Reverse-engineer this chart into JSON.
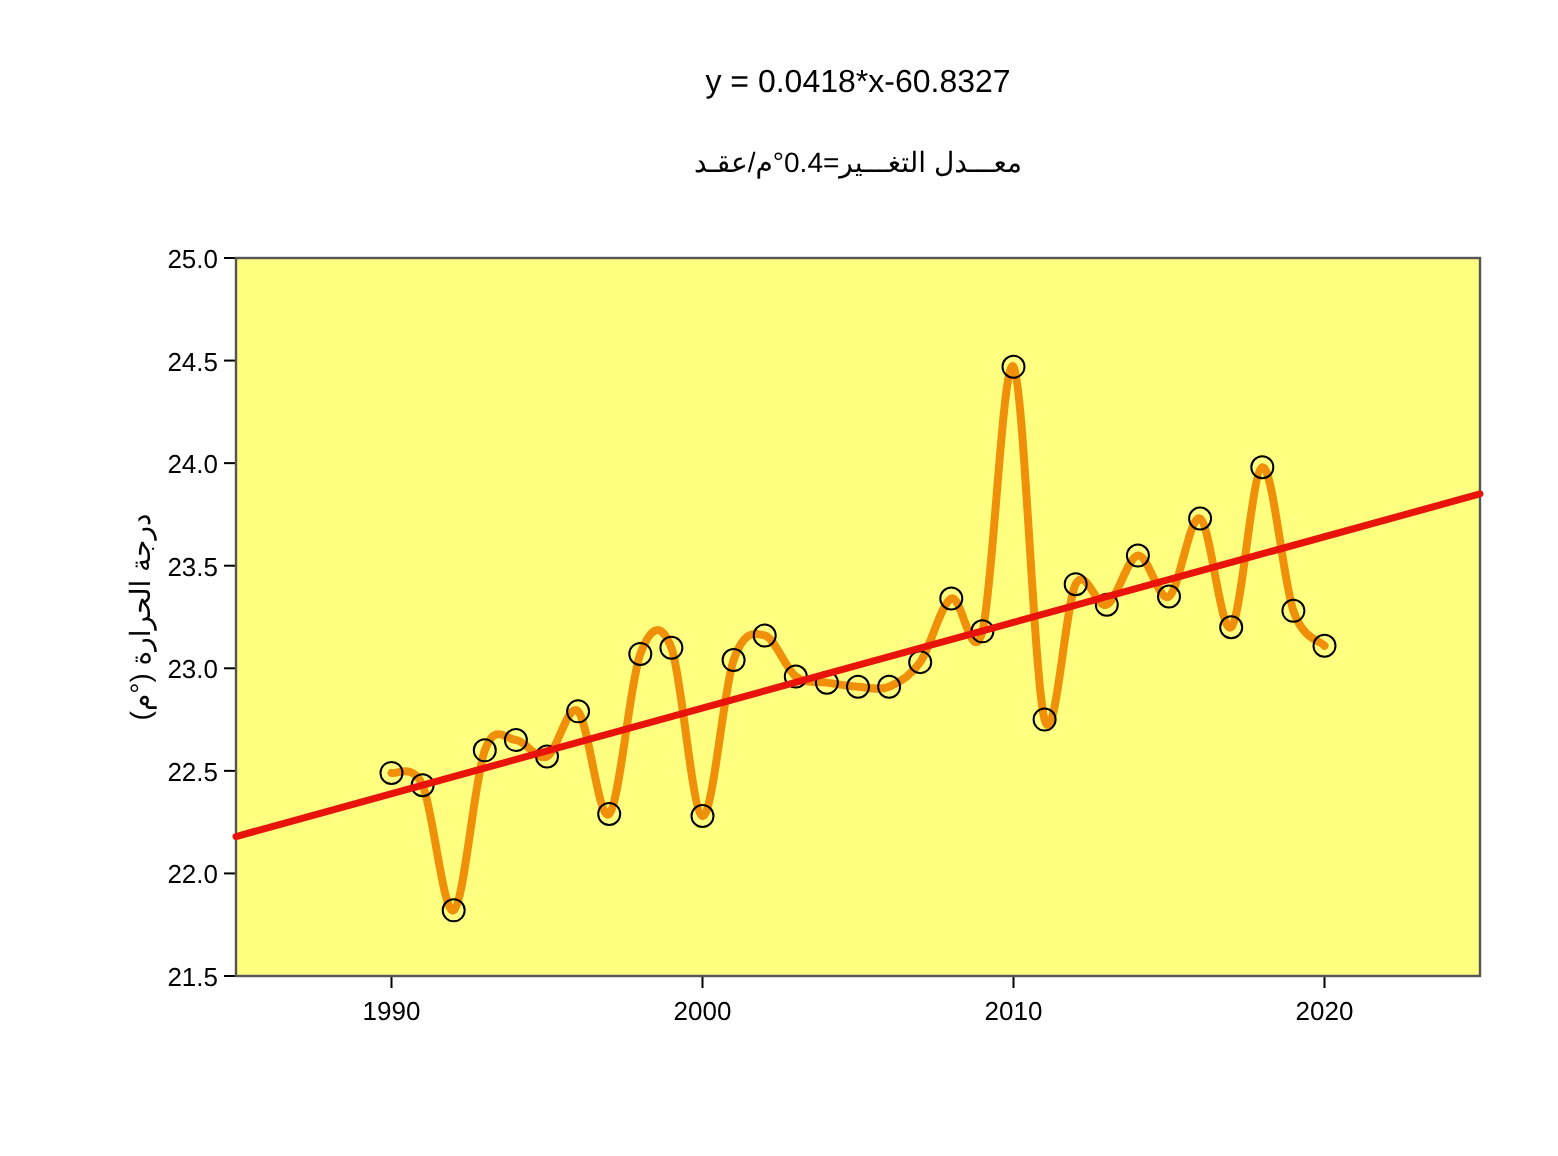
{
  "chart_data": {
    "type": "line",
    "title": "y =  0.0418*x-60.8327",
    "subtitle": "معـــدل التغـــير=0.4°م/عقـد",
    "ylabel": "درجة الحرارة (°م)",
    "xlim": [
      1985,
      2025
    ],
    "ylim": [
      21.5,
      25.0
    ],
    "xticks": [
      1990,
      2000,
      2010,
      2020
    ],
    "yticks": [
      {
        "value": 21.5,
        "label": "21.5"
      },
      {
        "value": 22,
        "label": "22.0"
      },
      {
        "value": 22.5,
        "label": "22.5"
      },
      {
        "value": 23,
        "label": "23.0"
      },
      {
        "value": 23.5,
        "label": "23.5"
      },
      {
        "value": 24,
        "label": "24.0"
      },
      {
        "value": 24.5,
        "label": "24.5"
      },
      {
        "value": 25,
        "label": "25.0"
      }
    ],
    "grid": false,
    "marker": "circle",
    "x": [
      1990,
      1991,
      1992,
      1993,
      1994,
      1995,
      1996,
      1997,
      1998,
      1999,
      2000,
      2001,
      2002,
      2003,
      2004,
      2005,
      2006,
      2007,
      2008,
      2009,
      2010,
      2011,
      2012,
      2013,
      2014,
      2015,
      2016,
      2017,
      2018,
      2019,
      2020
    ],
    "series": [
      {
        "color": "#f0900a",
        "values": [
          22.49,
          22.43,
          21.82,
          22.6,
          22.65,
          22.57,
          22.79,
          22.29,
          23.07,
          23.1,
          22.28,
          23.04,
          23.16,
          22.96,
          22.93,
          22.91,
          22.91,
          23.03,
          23.34,
          23.18,
          24.47,
          22.75,
          23.41,
          23.31,
          23.55,
          23.35,
          23.73,
          23.2,
          23.98,
          23.28,
          23.11
        ]
      },
      {
        "type": "line",
        "color": "#e8140c",
        "marker": "none",
        "x": [
          1985,
          2025
        ],
        "values": [
          22.18,
          23.85
        ]
      }
    ]
  }
}
